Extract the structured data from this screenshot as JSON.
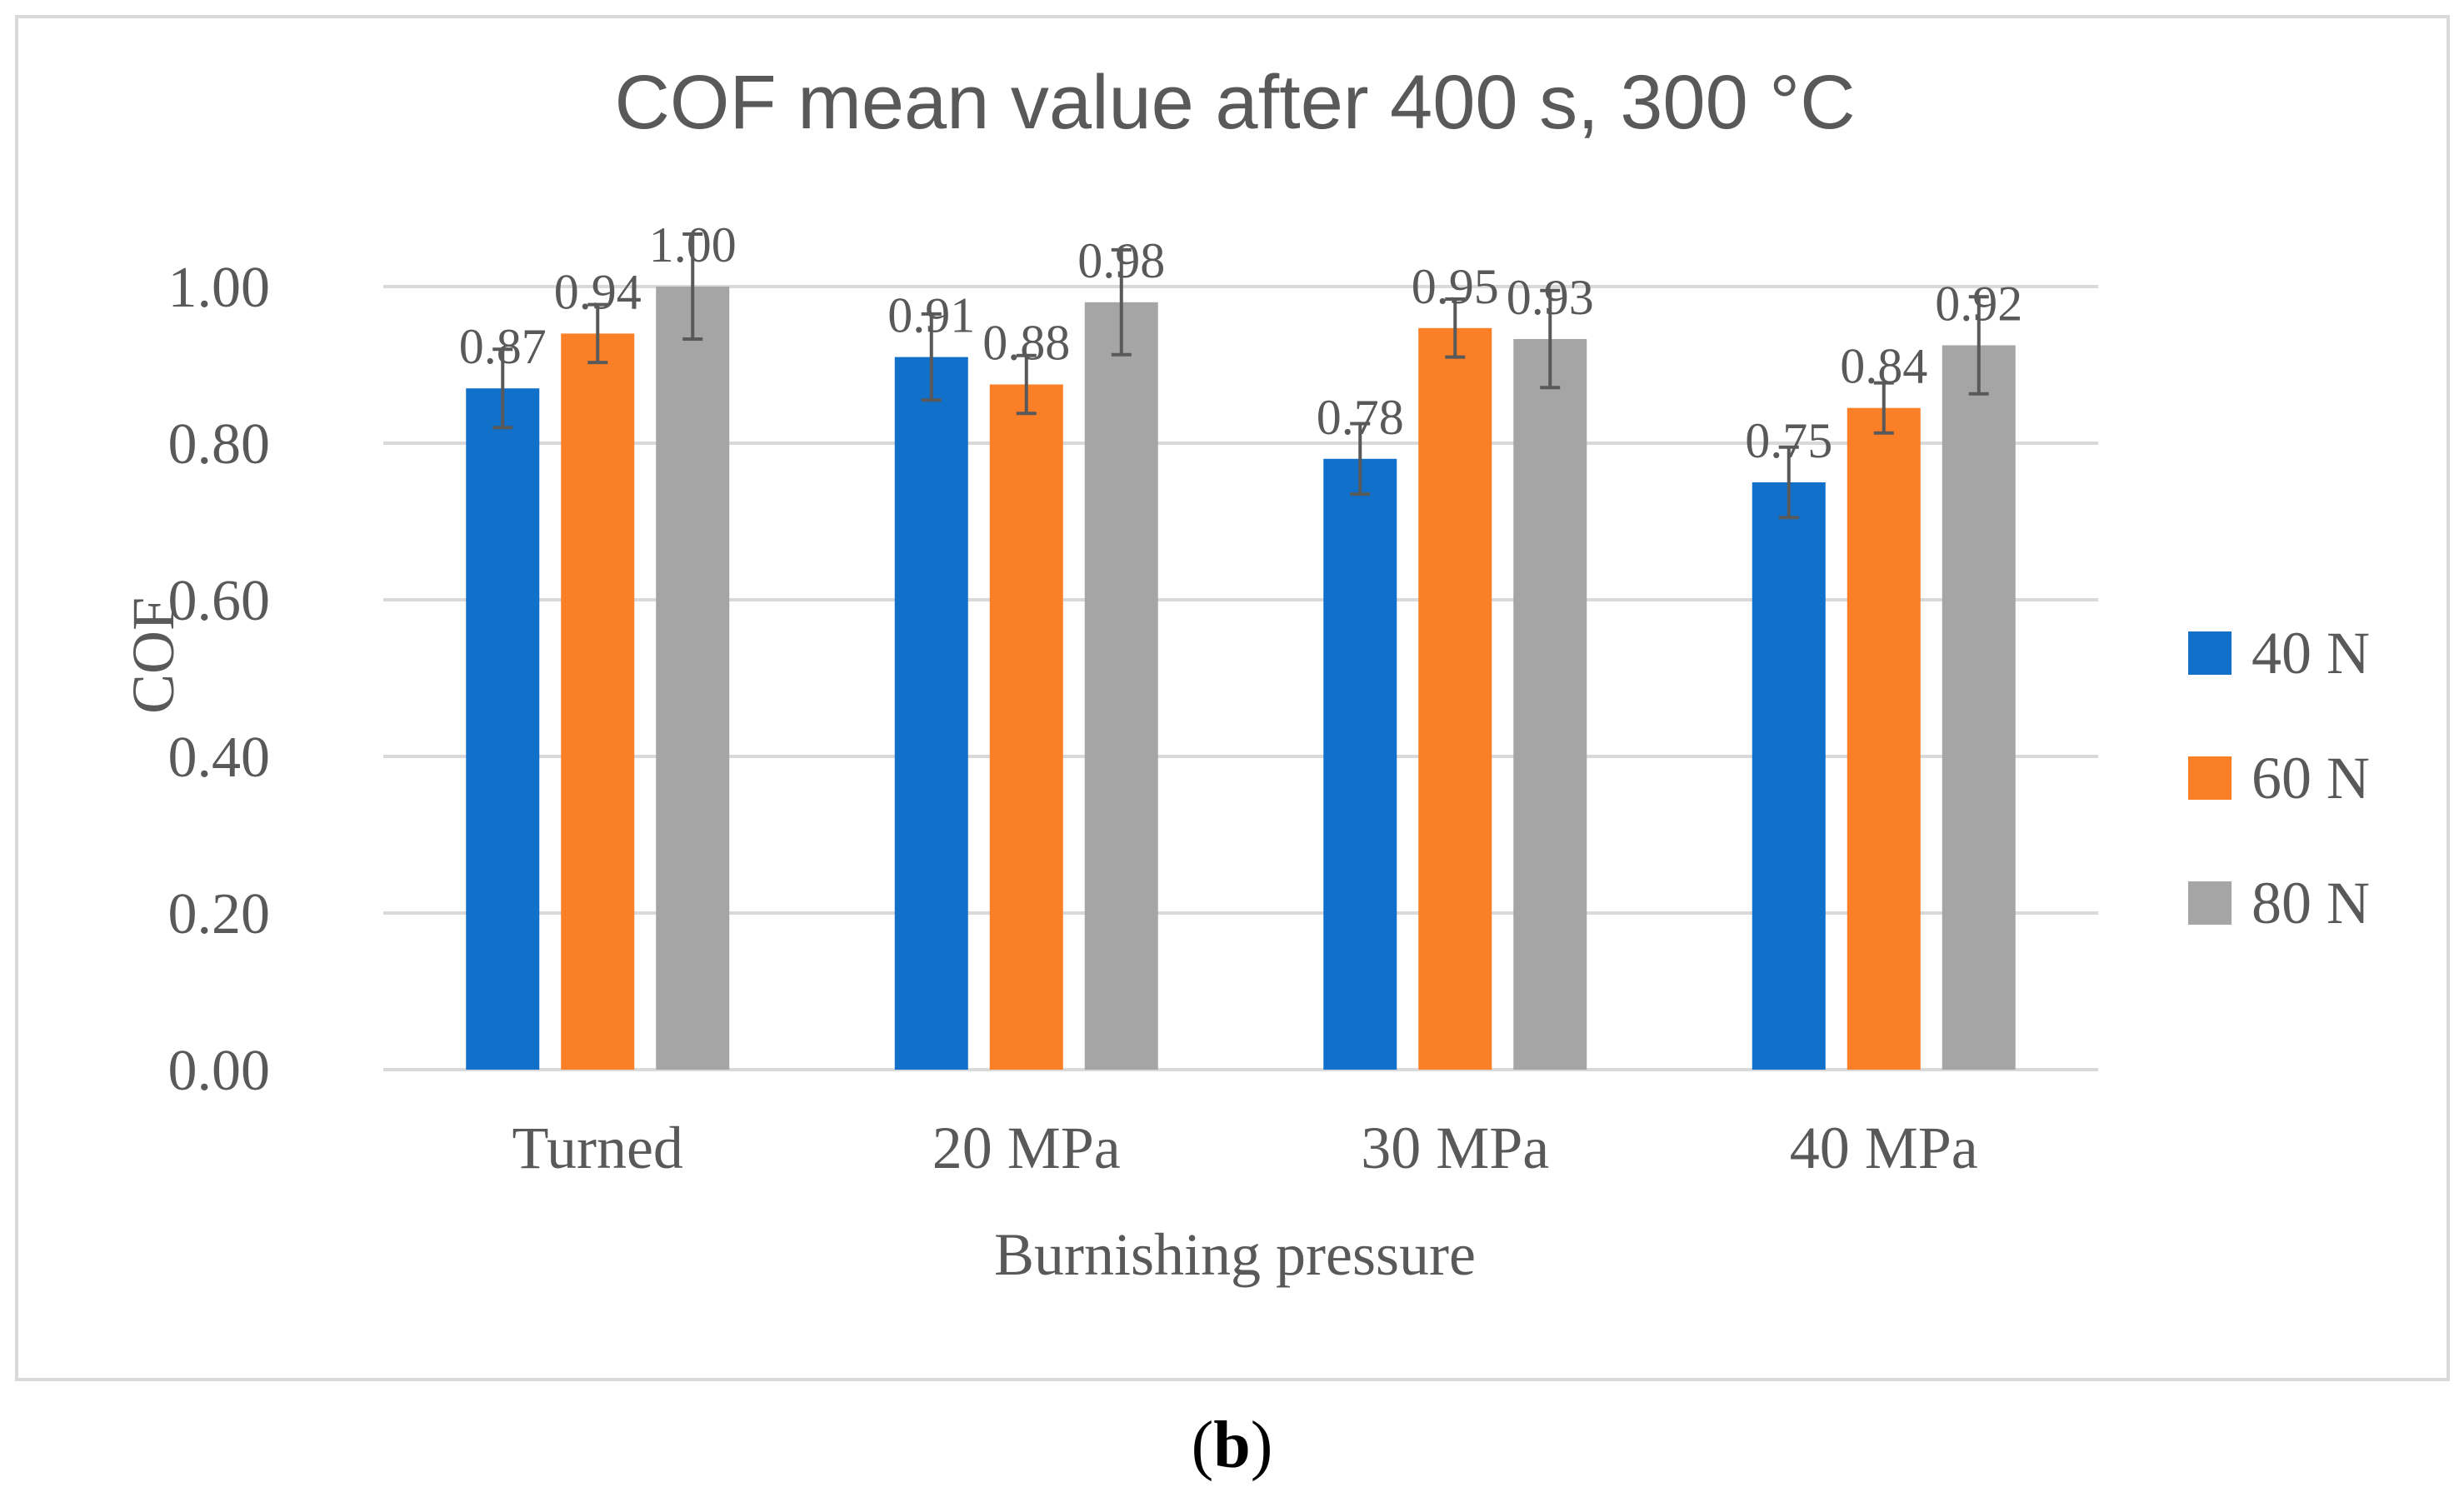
{
  "chart_data": {
    "type": "bar",
    "title": "COF mean value after 400 s, 300 °C",
    "xlabel": "Burnishing pressure",
    "ylabel": "COF",
    "categories": [
      "Turned",
      "20 MPa",
      "30 MPa",
      "40 MPa"
    ],
    "ylim": [
      0,
      1.0
    ],
    "yticks": [
      "0.00",
      "0.20",
      "0.40",
      "0.60",
      "0.80",
      "1.00"
    ],
    "grid": true,
    "legend_position": "right",
    "series": [
      {
        "name": "40 N",
        "color": "#1170c9",
        "values": [
          0.87,
          0.91,
          0.78,
          0.75
        ],
        "labels": [
          "0.87",
          "0.91",
          "0.78",
          "0.75"
        ],
        "errors": [
          0.05,
          0.055,
          0.045,
          0.045
        ]
      },
      {
        "name": "60 N",
        "color": "#fa7f27",
        "values": [
          0.94,
          0.875,
          0.947,
          0.845
        ],
        "labels": [
          "0.94",
          "0.88",
          "0.95",
          "0.84"
        ],
        "errors": [
          0.037,
          0.037,
          0.037,
          0.032
        ]
      },
      {
        "name": "80 N",
        "color": "#a5a5a5",
        "values": [
          1.0,
          0.98,
          0.933,
          0.925
        ],
        "labels": [
          "1.00",
          "0.98",
          "0.93",
          "0.92"
        ],
        "errors": [
          0.067,
          0.067,
          0.062,
          0.062
        ]
      }
    ]
  },
  "panel": {
    "open": "(",
    "letter": "b",
    "close": ")"
  }
}
